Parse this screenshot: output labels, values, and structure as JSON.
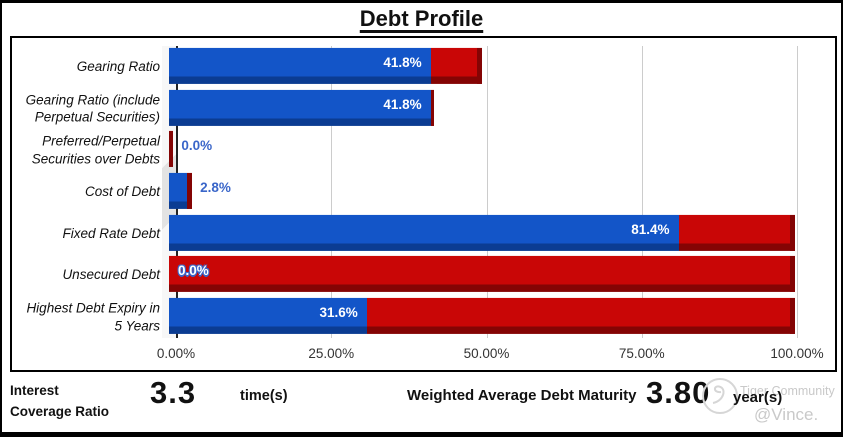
{
  "title": "Debt Profile",
  "chart_data": {
    "type": "bar",
    "orientation": "horizontal",
    "stacked": true,
    "effect_3d": true,
    "title": "Debt Profile",
    "legend": "none",
    "grid": "vertical",
    "x_axis": {
      "min": 0,
      "max": 100,
      "ticks": [
        "0.00%",
        "25.00%",
        "50.00%",
        "75.00%",
        "100.00%"
      ],
      "tick_positions_pct": [
        0,
        25,
        50,
        75,
        100
      ]
    },
    "categories": [
      "Gearing Ratio",
      "Gearing Ratio (include\nPerpetual Securities)",
      "Preferred/Perpetual\nSecurities over Debts",
      "Cost of Debt",
      "Fixed Rate Debt",
      "Unsecured Debt",
      "Highest Debt Expiry in\n5 Years"
    ],
    "series": [
      {
        "name": "value",
        "color": "#1355C8",
        "values": [
          41.8,
          41.8,
          0.0,
          2.8,
          81.4,
          0.0,
          31.6
        ]
      },
      {
        "name": "remainder",
        "color": "#C90606",
        "values": [
          8.2,
          0.6,
          0.7,
          0.9,
          18.6,
          100.0,
          68.4
        ]
      }
    ],
    "annotations": [
      {
        "text": "41.8%",
        "placement": "inside-end"
      },
      {
        "text": "41.8%",
        "placement": "inside-end"
      },
      {
        "text": "0.0%",
        "placement": "outside"
      },
      {
        "text": "2.8%",
        "placement": "outside"
      },
      {
        "text": "81.4%",
        "placement": "inside-end"
      },
      {
        "text": "0.0%",
        "placement": "start-outline"
      },
      {
        "text": "31.6%",
        "placement": "inside-end"
      }
    ],
    "colors": {
      "bar_primary": "#1355C8",
      "bar_primary_dark": "#0B3C92",
      "bar_secondary": "#C90606",
      "bar_secondary_dark": "#840404",
      "gridline": "#CCCCCC",
      "axis_line": "#222222",
      "annotation_inside": "#FFFFFF",
      "annotation_outside": "#3A66C9"
    }
  },
  "footer": {
    "interest_coverage": {
      "label": "Interest\nCoverage Ratio",
      "value": "3.3",
      "unit": "time(s)"
    },
    "debt_maturity": {
      "label": "Weighted Average Debt Maturity",
      "value": "3.80",
      "unit": "year(s)"
    }
  },
  "watermark": {
    "line1": "Tiger Community",
    "line2": "@Vince."
  }
}
